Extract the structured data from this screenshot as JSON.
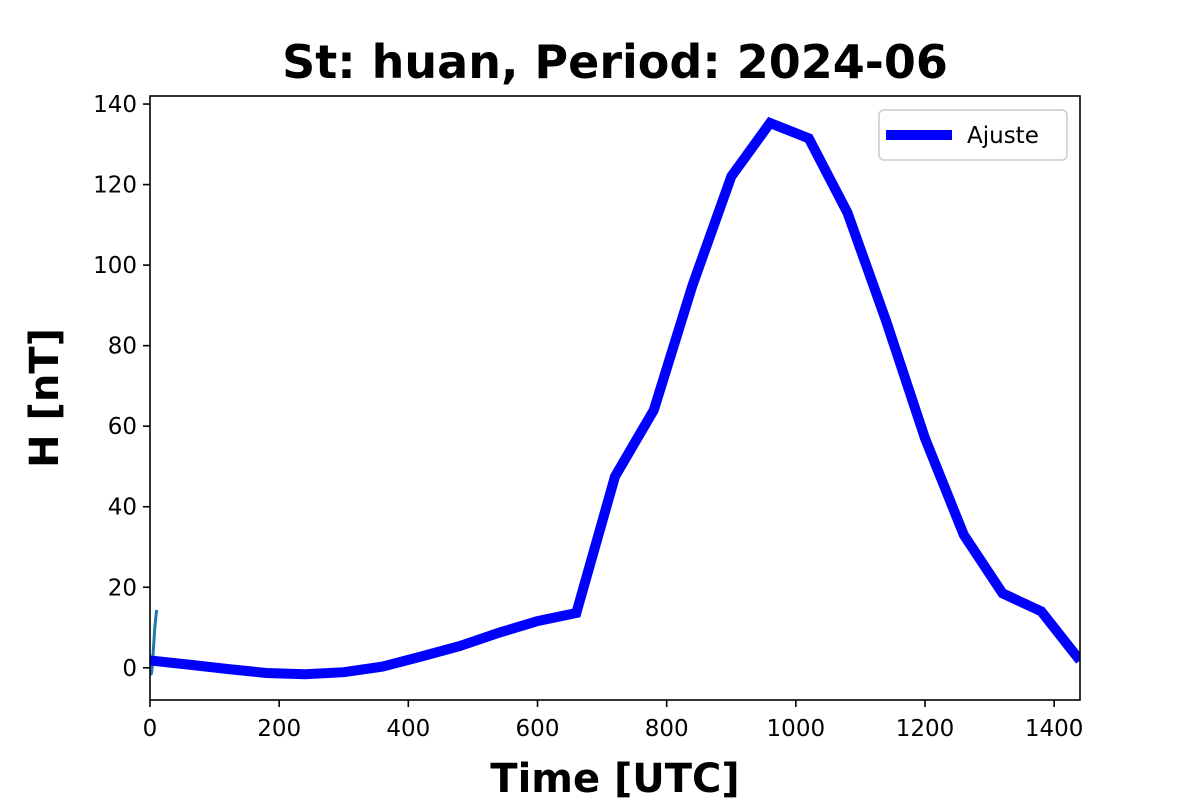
{
  "chart_data": {
    "type": "line",
    "title": "St: huan, Period: 2024-06",
    "xlabel": "Time [UTC]",
    "ylabel": "H [nT]",
    "xlim": [
      0,
      1440
    ],
    "ylim": [
      -8,
      142
    ],
    "x_ticks": [
      0,
      200,
      400,
      600,
      800,
      1000,
      1200,
      1400
    ],
    "y_ticks": [
      0,
      20,
      40,
      60,
      80,
      100,
      120,
      140
    ],
    "grid": false,
    "legend_position": "top-right",
    "series": [
      {
        "name": "",
        "color": "#1f77b4",
        "x": [
          0,
          1,
          2,
          3,
          4,
          5,
          6,
          7,
          8,
          9,
          10
        ],
        "y": [
          -1,
          -1.6,
          -1.5,
          -0.5,
          1.5,
          4,
          6.5,
          9,
          11,
          12.5,
          14
        ]
      },
      {
        "name": "Ajuste",
        "color": "#0000ff",
        "x": [
          0,
          60,
          120,
          180,
          240,
          300,
          360,
          420,
          480,
          540,
          600,
          660,
          720,
          780,
          840,
          900,
          960,
          1020,
          1080,
          1140,
          1200,
          1260,
          1320,
          1380,
          1440
        ],
        "y": [
          1.8,
          0.8,
          -0.3,
          -1.3,
          -1.6,
          -1.1,
          0.3,
          2.8,
          5.4,
          8.7,
          11.6,
          13.6,
          47.5,
          64,
          95,
          122,
          135.3,
          131.5,
          113,
          86,
          57,
          33,
          18.5,
          14,
          1.8
        ]
      }
    ]
  }
}
